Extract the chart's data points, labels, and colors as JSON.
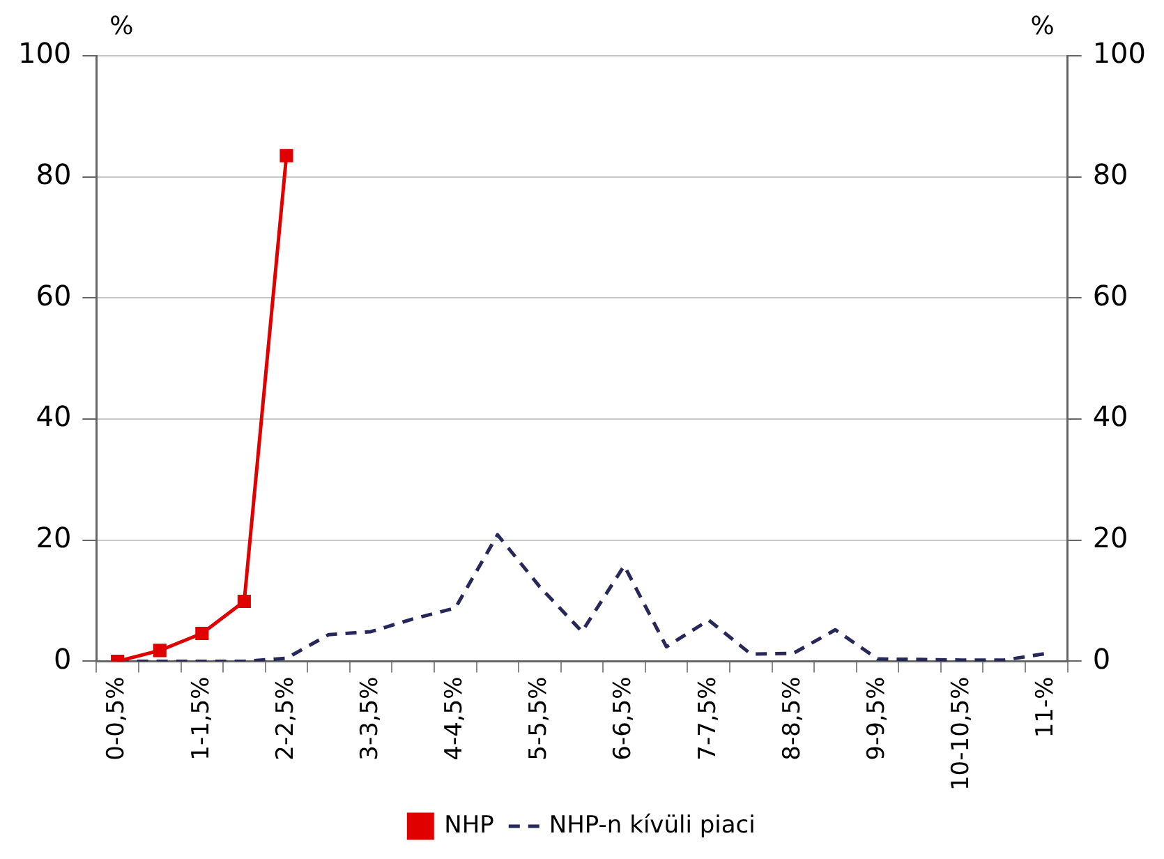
{
  "chart_data": {
    "type": "line",
    "ylabel": "%",
    "y2label": "%",
    "categories": [
      "0-0,5%",
      null,
      "1-1,5%",
      null,
      "2-2,5%",
      null,
      "3-3,5%",
      null,
      "4-4,5%",
      null,
      "5-5,5%",
      null,
      "6-6,5%",
      null,
      "7-7,5%",
      null,
      "8-8,5%",
      null,
      "9-9,5%",
      null,
      "10-10,5%",
      null,
      "11-%"
    ],
    "series": [
      {
        "name": "NHP",
        "color": "#e00000",
        "marker": "square",
        "line_style": "solid",
        "values": [
          0,
          1.8,
          4.6,
          9.9,
          83.5,
          null,
          null,
          null,
          null,
          null,
          null,
          null,
          null,
          null,
          null,
          null,
          null,
          null,
          null,
          null,
          null,
          null,
          null
        ]
      },
      {
        "name": "NHP-n kívüli piaci",
        "color": "#27275a",
        "marker": "none",
        "line_style": "dashed",
        "values": [
          0,
          0,
          0,
          0,
          0.5,
          4.4,
          4.9,
          7,
          8.8,
          20.9,
          12.3,
          4.9,
          15.8,
          2.4,
          6.8,
          1.2,
          1.3,
          5.2,
          0.4,
          0.3,
          0.2,
          0.2,
          1.3
        ]
      }
    ],
    "ylim": [
      0,
      100
    ],
    "yticks": [
      0,
      20,
      40,
      60,
      80,
      100
    ],
    "y2lim": [
      0,
      100
    ],
    "y2ticks": [
      0,
      20,
      40,
      60,
      80,
      100
    ],
    "grid": "y",
    "legend": "bottom"
  }
}
